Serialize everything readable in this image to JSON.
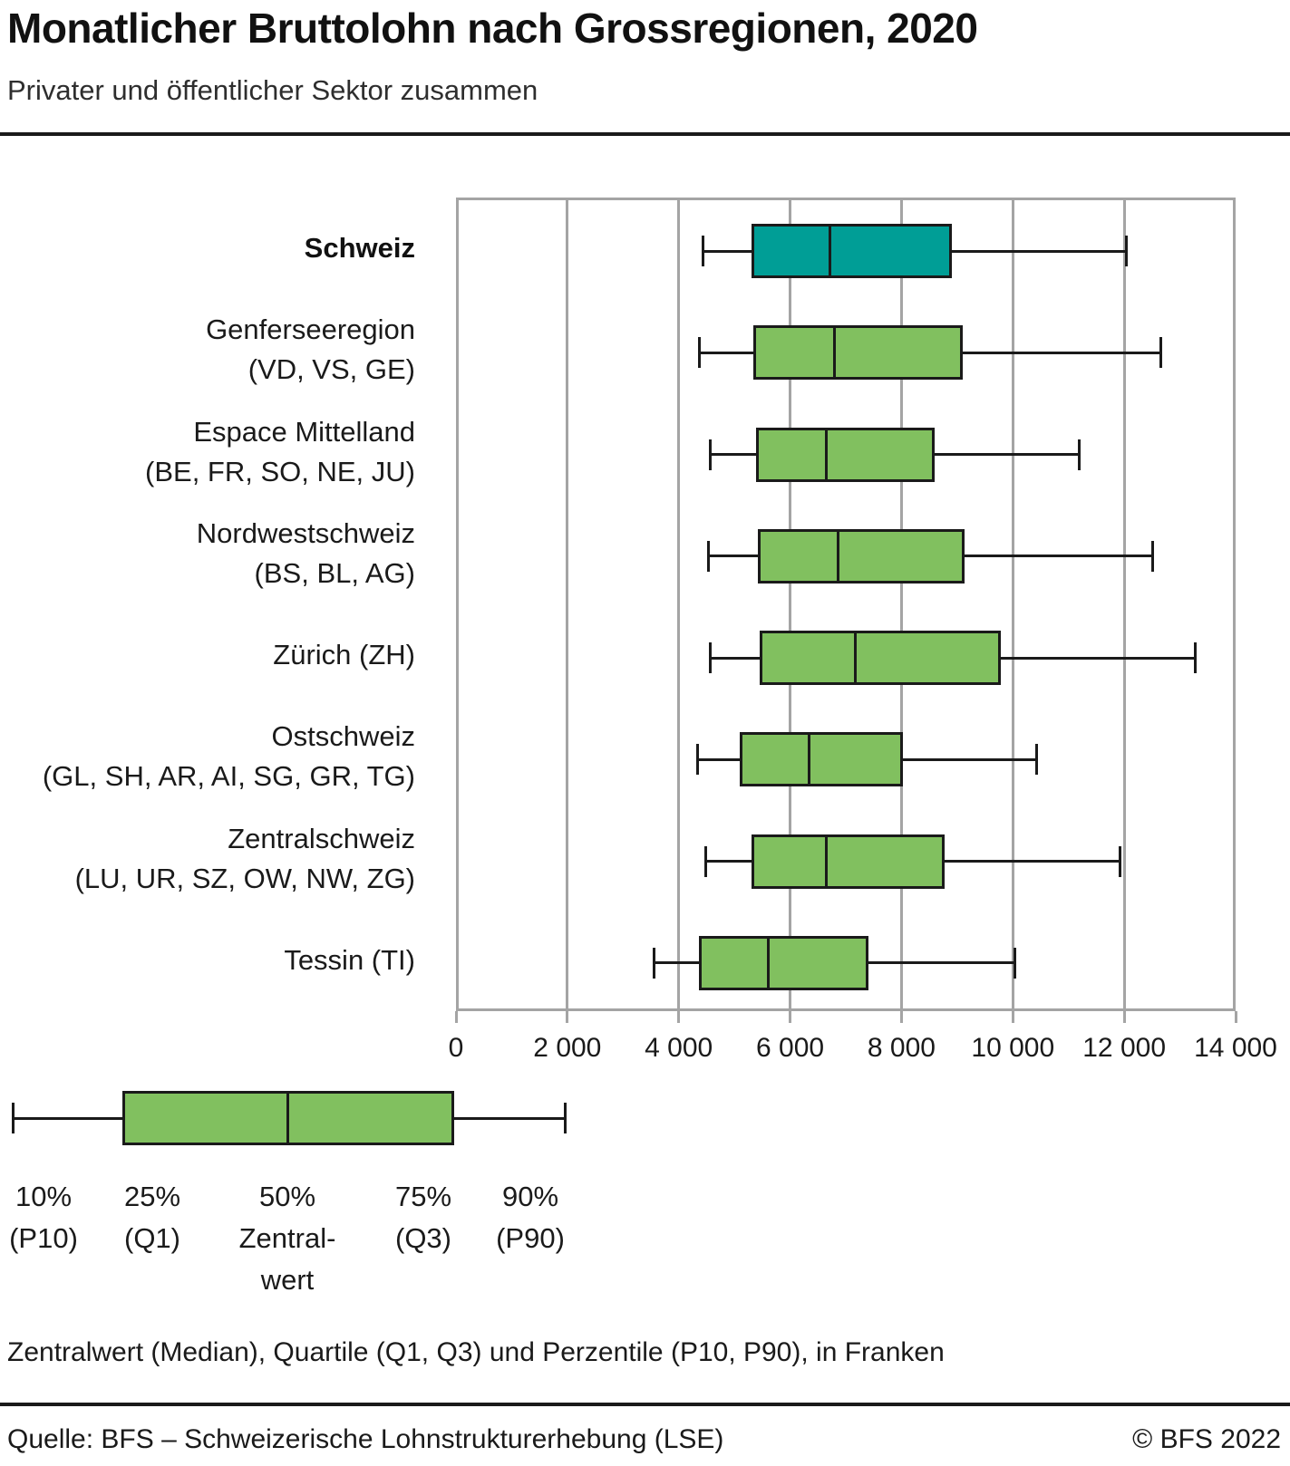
{
  "header": {
    "title": "Monatlicher Bruttolohn nach Grossregionen, 2020",
    "subtitle": "Privater und öffentlicher Sektor zusammen"
  },
  "chart_data": {
    "type": "boxplot",
    "orientation": "horizontal",
    "unit": "Franken",
    "xlim": [
      0,
      14000
    ],
    "x_ticks": [
      0,
      2000,
      4000,
      6000,
      8000,
      10000,
      12000,
      14000
    ],
    "x_tick_labels": [
      "0",
      "2 000",
      "4 000",
      "6 000",
      "8 000",
      "10 000",
      "12 000",
      "14 000"
    ],
    "colors": {
      "box_default": "#81C05F",
      "box_highlight": "#009E96",
      "box_border": "#1a1a1a",
      "grid": "#a4a4a4"
    },
    "series": [
      {
        "name": "Schweiz",
        "label_lines": [
          "Schweiz"
        ],
        "highlight": true,
        "p10": 4382,
        "q1": 5264,
        "median": 6665,
        "q3": 8861,
        "p90": 11997
      },
      {
        "name": "Genferseeregion (VD, VS, GE)",
        "label_lines": [
          "Genferseeregion",
          "(VD, VS, GE)"
        ],
        "highlight": false,
        "p10": 4330,
        "q1": 5290,
        "median": 6747,
        "q3": 9045,
        "p90": 12600
      },
      {
        "name": "Espace Mittelland (BE, FR, SO, NE, JU)",
        "label_lines": [
          "Espace Mittelland",
          "(BE, FR, SO, NE, JU)"
        ],
        "highlight": false,
        "p10": 4510,
        "q1": 5340,
        "median": 6598,
        "q3": 8540,
        "p90": 11150
      },
      {
        "name": "Nordwestschweiz (BS, BL, AG)",
        "label_lines": [
          "Nordwestschweiz",
          "(BS, BL, AG)"
        ],
        "highlight": false,
        "p10": 4490,
        "q1": 5380,
        "median": 6810,
        "q3": 9080,
        "p90": 12460
      },
      {
        "name": "Zürich (ZH)",
        "label_lines": [
          "Zürich (ZH)"
        ],
        "highlight": false,
        "p10": 4510,
        "q1": 5400,
        "median": 7126,
        "q3": 9735,
        "p90": 13220
      },
      {
        "name": "Ostschweiz (GL, SH, AR, AI, SG, GR, TG)",
        "label_lines": [
          "Ostschweiz",
          "(GL, SH, AR, AI, SG, GR, TG)"
        ],
        "highlight": false,
        "p10": 4290,
        "q1": 5040,
        "median": 6291,
        "q3": 7970,
        "p90": 10370
      },
      {
        "name": "Zentralschweiz (LU, UR, SZ, OW, NW, ZG)",
        "label_lines": [
          "Zentralschweiz",
          "(LU, UR, SZ, OW, NW, ZG)"
        ],
        "highlight": false,
        "p10": 4440,
        "q1": 5260,
        "median": 6594,
        "q3": 8720,
        "p90": 11880
      },
      {
        "name": "Tessin (TI)",
        "label_lines": [
          "Tessin (TI)"
        ],
        "highlight": false,
        "p10": 3510,
        "q1": 4310,
        "median": 5563,
        "q3": 7360,
        "p90": 9990
      }
    ]
  },
  "legend": {
    "items": [
      {
        "lines": [
          "10%",
          "(P10)"
        ]
      },
      {
        "lines": [
          "25%",
          "(Q1)"
        ]
      },
      {
        "lines": [
          "50%",
          "Zentral-",
          "wert"
        ]
      },
      {
        "lines": [
          "75%",
          "(Q3)"
        ]
      },
      {
        "lines": [
          "90%",
          "(P90)"
        ]
      }
    ]
  },
  "note": "Zentralwert (Median), Quartile (Q1, Q3) und Perzentile (P10, P90), in Franken",
  "footer": {
    "source": "Quelle: BFS – Schweizerische Lohnstrukturerhebung (LSE)",
    "copyright": "© BFS 2022"
  }
}
